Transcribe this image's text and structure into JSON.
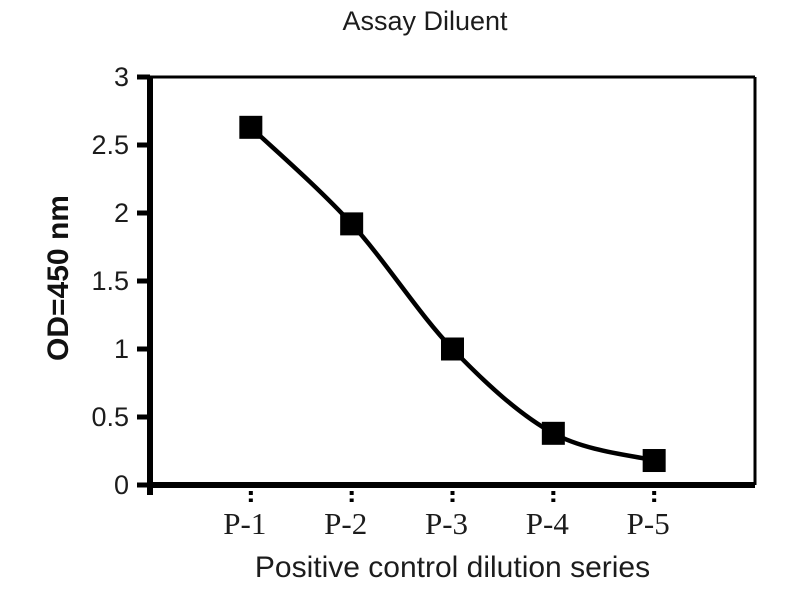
{
  "chart_data": {
    "type": "line",
    "title": "Assay Diluent",
    "xlabel": "Positive control dilution series",
    "ylabel": "OD=450 nm",
    "categories": [
      "P-1",
      "P-2",
      "P-3",
      "P-4",
      "P-5"
    ],
    "values": [
      2.63,
      1.92,
      1.0,
      0.38,
      0.18
    ],
    "ylim": [
      0,
      3
    ],
    "yticks": [
      0,
      0.5,
      1,
      1.5,
      2,
      2.5,
      3
    ],
    "ytick_labels": [
      "0",
      "0.5",
      "1",
      "1.5",
      "2",
      "2.5",
      "3"
    ],
    "marker": "square",
    "line_style": "smooth",
    "grid": false,
    "legend": false,
    "colors": {
      "background": "#ffffff",
      "axis": "#000000",
      "text": "#1c1c1c",
      "series": "#000000"
    }
  }
}
